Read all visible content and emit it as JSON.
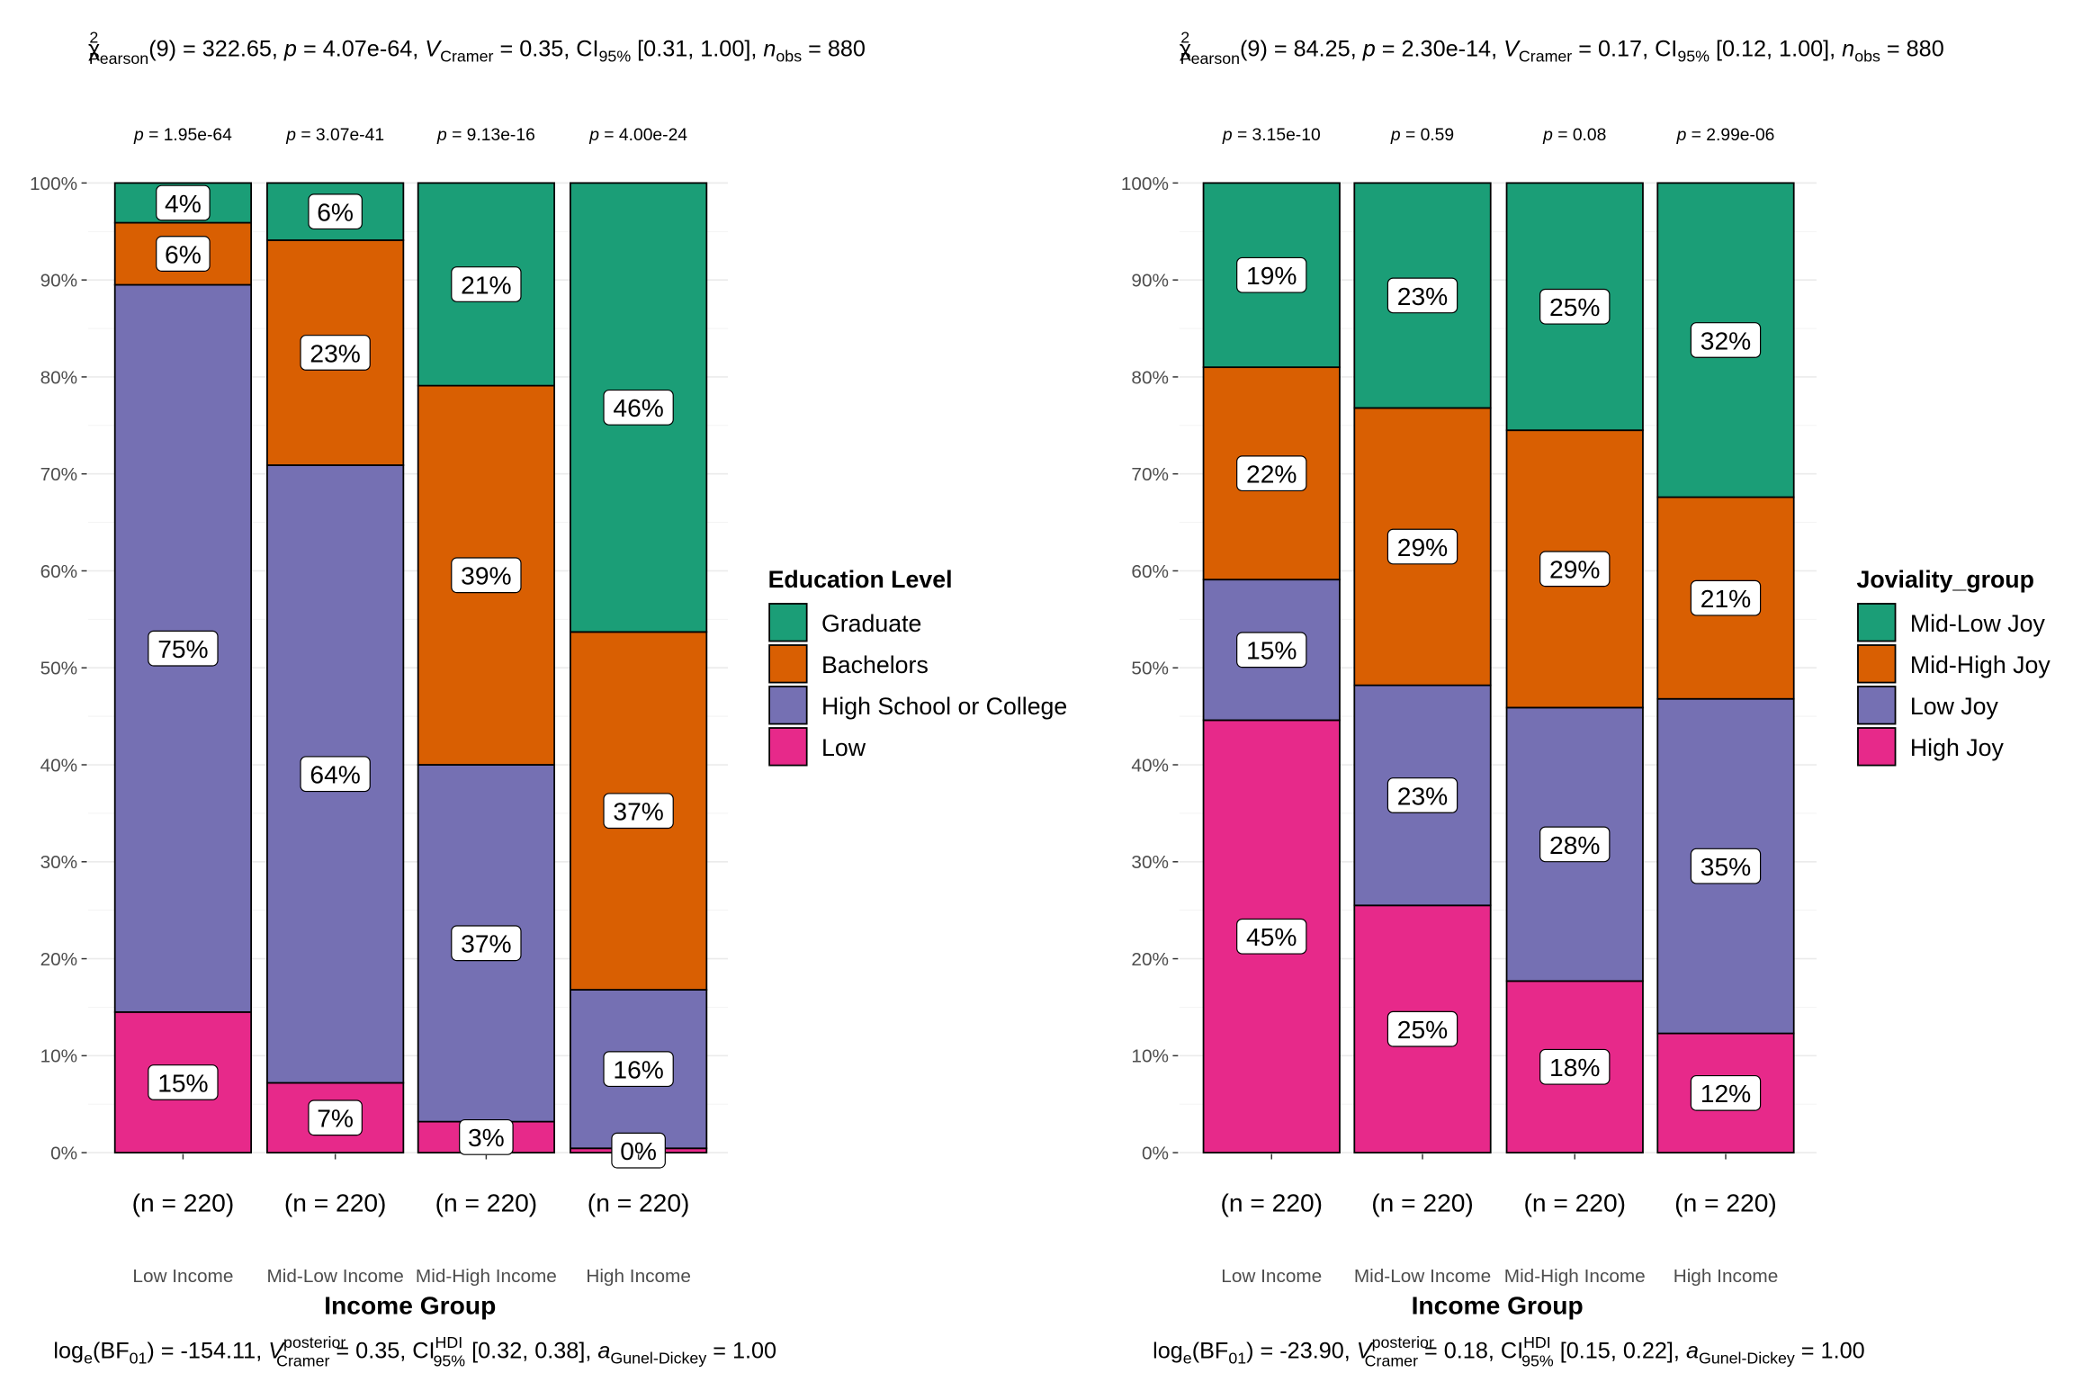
{
  "chart_data": [
    {
      "type": "bar",
      "stacked": true,
      "percent": true,
      "title": "χ²_Pearson(9) = 322.65, p = 4.07e-64, V̂_Cramer = 0.35, CI_95% [0.31, 1.00], n_obs = 880",
      "title_parts": {
        "chi": "322.65",
        "df": "9",
        "p": "4.07e-64",
        "v": "0.35",
        "ci": "[0.31, 1.00]",
        "nobs": "880"
      },
      "subtitle": "log_e(BF01) = -154.11, V̂_Cramer^posterior = 0.35, CI_95%^HDI [0.32, 0.38], a_Gunel-Dickey = 1.00",
      "subtitle_parts": {
        "bf": "-154.11",
        "v": "0.35",
        "ci": "[0.32, 0.38]",
        "a": "1.00"
      },
      "xlabel": "Income Group",
      "ylabel": "",
      "ylim": [
        0,
        100
      ],
      "yticks": [
        "0%",
        "10%",
        "20%",
        "30%",
        "40%",
        "50%",
        "60%",
        "70%",
        "80%",
        "90%",
        "100%"
      ],
      "categories": [
        "Low Income",
        "Mid-Low Income",
        "Mid-High Income",
        "High Income"
      ],
      "p_values": [
        "1.95e-64",
        "3.07e-41",
        "9.13e-16",
        "4.00e-24"
      ],
      "n_labels": [
        "(n = 220)",
        "(n = 220)",
        "(n = 220)",
        "(n = 220)"
      ],
      "legend_title": "Education Level",
      "legend_position": "right",
      "series": [
        {
          "name": "Graduate",
          "color": "#1b9e77",
          "values": [
            4.1,
            5.9,
            20.9,
            46.3
          ],
          "labels": [
            "4%",
            "6%",
            "21%",
            "46%"
          ]
        },
        {
          "name": "Bachelors",
          "color": "#d95f02",
          "values": [
            6.4,
            23.2,
            39.1,
            36.9
          ],
          "labels": [
            "6%",
            "23%",
            "39%",
            "37%"
          ]
        },
        {
          "name": "High School or College",
          "color": "#7570b3",
          "values": [
            75.0,
            63.7,
            36.8,
            16.35
          ],
          "labels": [
            "75%",
            "64%",
            "37%",
            "16%"
          ]
        },
        {
          "name": "Low",
          "color": "#e7298a",
          "values": [
            14.5,
            7.2,
            3.2,
            0.45
          ],
          "labels": [
            "15%",
            "7%",
            "3%",
            "0%"
          ]
        }
      ]
    },
    {
      "type": "bar",
      "stacked": true,
      "percent": true,
      "title": "χ²_Pearson(9) = 84.25, p = 2.30e-14, V̂_Cramer = 0.17, CI_95% [0.12, 1.00], n_obs = 880",
      "title_parts": {
        "chi": "84.25",
        "df": "9",
        "p": "2.30e-14",
        "v": "0.17",
        "ci": "[0.12, 1.00]",
        "nobs": "880"
      },
      "subtitle": "log_e(BF01) = -23.90, V̂_Cramer^posterior = 0.18, CI_95%^HDI [0.15, 0.22], a_Gunel-Dickey = 1.00",
      "subtitle_parts": {
        "bf": "-23.90",
        "v": "0.18",
        "ci": "[0.15, 0.22]",
        "a": "1.00"
      },
      "xlabel": "Income Group",
      "ylabel": "",
      "ylim": [
        0,
        100
      ],
      "yticks": [
        "0%",
        "10%",
        "20%",
        "30%",
        "40%",
        "50%",
        "60%",
        "70%",
        "80%",
        "90%",
        "100%"
      ],
      "categories": [
        "Low Income",
        "Mid-Low Income",
        "Mid-High Income",
        "High Income"
      ],
      "p_values": [
        "3.15e-10",
        "0.59",
        "0.08",
        "2.99e-06"
      ],
      "n_labels": [
        "(n = 220)",
        "(n = 220)",
        "(n = 220)",
        "(n = 220)"
      ],
      "legend_title": "Joviality_group",
      "legend_position": "right",
      "series": [
        {
          "name": "Mid-Low Joy",
          "color": "#1b9e77",
          "values": [
            19.0,
            23.2,
            25.5,
            32.4
          ],
          "labels": [
            "19%",
            "23%",
            "25%",
            "32%"
          ]
        },
        {
          "name": "Mid-High Joy",
          "color": "#d95f02",
          "values": [
            21.9,
            28.6,
            28.6,
            20.8
          ],
          "labels": [
            "22%",
            "29%",
            "29%",
            "21%"
          ]
        },
        {
          "name": "Low Joy",
          "color": "#7570b3",
          "values": [
            14.5,
            22.7,
            28.2,
            34.5
          ],
          "labels": [
            "15%",
            "23%",
            "28%",
            "35%"
          ]
        },
        {
          "name": "High Joy",
          "color": "#e7298a",
          "values": [
            44.6,
            25.5,
            17.7,
            12.3
          ],
          "labels": [
            "45%",
            "25%",
            "18%",
            "12%"
          ]
        }
      ]
    }
  ]
}
